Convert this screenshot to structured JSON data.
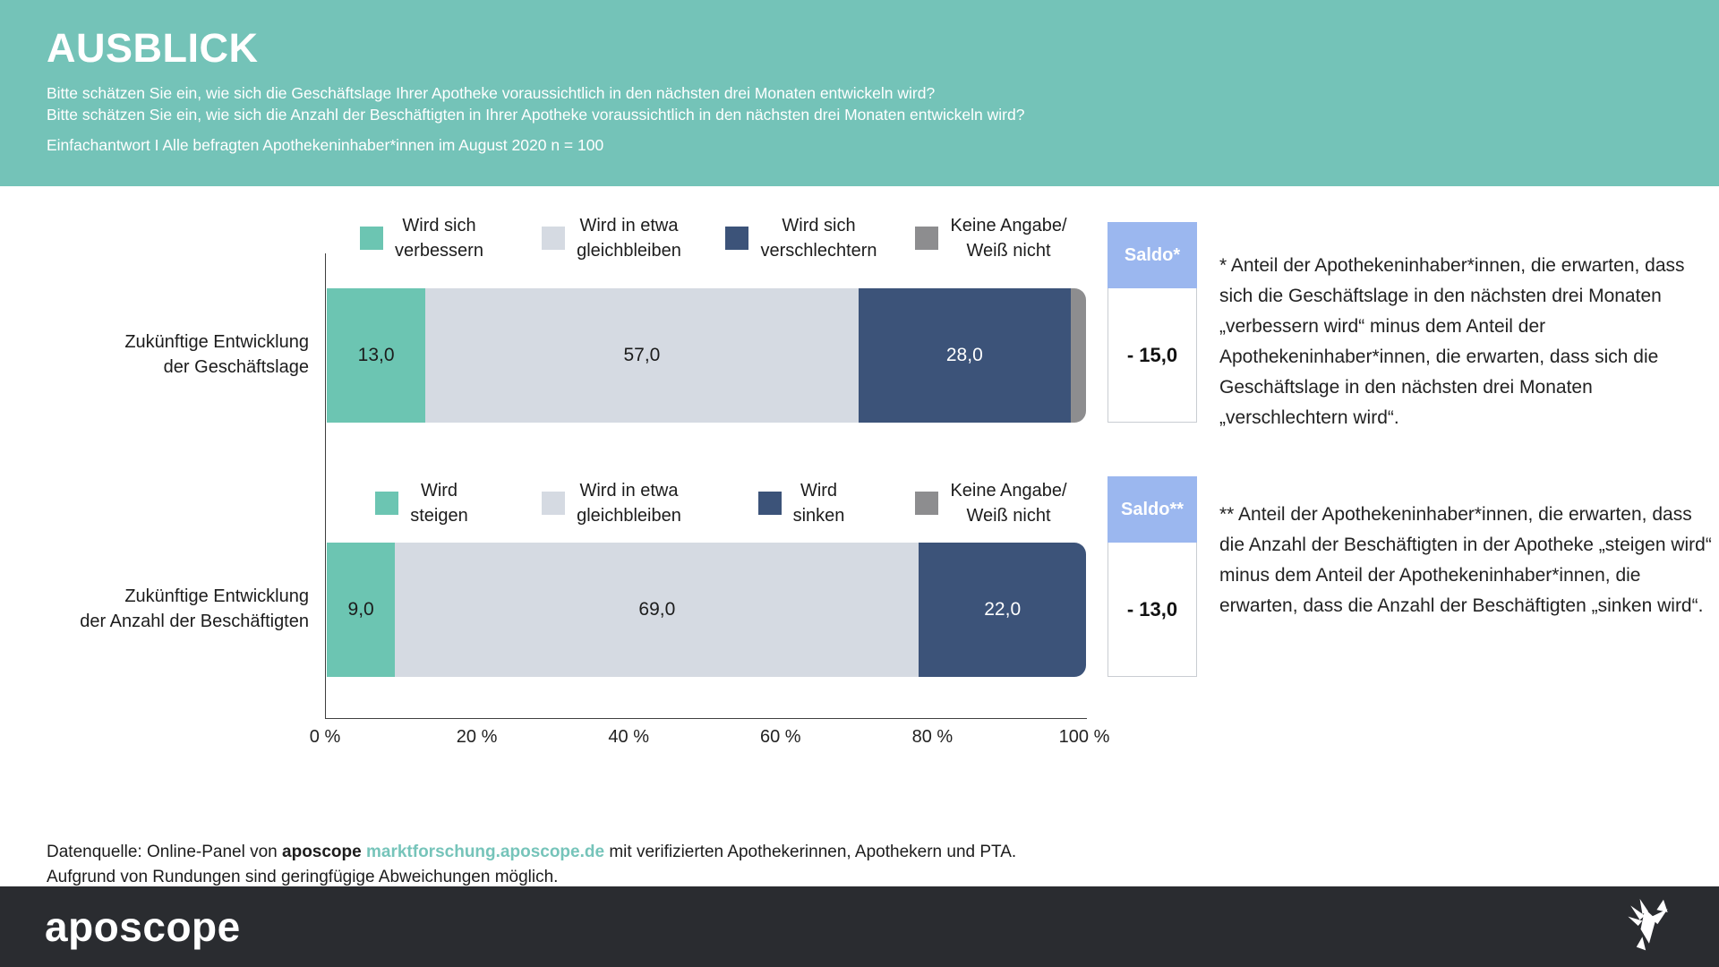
{
  "header": {
    "title": "AUSBLICK",
    "subtitle_lines": [
      "Bitte schätzen Sie ein, wie sich die Geschäftslage Ihrer Apotheke voraussichtlich in den nächsten drei Monaten entwickeln wird?",
      "Bitte schätzen Sie ein, wie sich die Anzahl der Beschäftigten in Ihrer Apotheke voraussichtlich in den nächsten drei Monaten entwickeln wird?"
    ],
    "meta": "Einfachantwort I Alle befragten Apothekeninhaber*innen im August 2020 n = 100"
  },
  "colors": {
    "header_bg": "#74c3b8",
    "positive": "#6cc5b2",
    "neutral": "#d5dae2",
    "negative": "#3c5379",
    "no_answer": "#8d8d8f",
    "saldo_header": "#9bb7ef",
    "link": "#76c4ba",
    "footer_bg": "#2a2c30"
  },
  "chart_data": {
    "type": "bar",
    "orientation": "horizontal",
    "stacked": true,
    "x_axis": {
      "min": 0,
      "max": 100,
      "ticks": [
        "0 %",
        "20 %",
        "40 %",
        "60 %",
        "80 %",
        "100 %"
      ]
    },
    "rows": [
      {
        "label_lines": [
          "Zukünftige Entwicklung",
          "der Geschäftslage"
        ],
        "legend": [
          {
            "lines": [
              "Wird sich",
              "verbessern"
            ],
            "color": "#6cc5b2"
          },
          {
            "lines": [
              "Wird in etwa",
              "gleichbleiben"
            ],
            "color": "#d5dae2"
          },
          {
            "lines": [
              "Wird sich",
              "verschlechtern"
            ],
            "color": "#3c5379"
          },
          {
            "lines": [
              "Keine Angabe/",
              "Weiß nicht"
            ],
            "color": "#8d8d8f"
          }
        ],
        "segments": [
          {
            "name": "Wird sich verbessern",
            "value": 13.0,
            "display": "13,0",
            "color": "#6cc5b2",
            "text": "#1c1c1c"
          },
          {
            "name": "Wird in etwa gleichbleiben",
            "value": 57.0,
            "display": "57,0",
            "color": "#d5dae2",
            "text": "#1c1c1c"
          },
          {
            "name": "Wird sich verschlechtern",
            "value": 28.0,
            "display": "28,0",
            "color": "#3c5379",
            "text": "#ffffff"
          },
          {
            "name": "Keine Angabe/Weiß nicht",
            "value": 2.0,
            "display": "",
            "color": "#8d8d8f",
            "text": "#ffffff"
          }
        ],
        "saldo": {
          "label": "Saldo*",
          "value": "- 15,0"
        },
        "footnote": "* Anteil der Apothekeninhaber*innen, die erwarten, dass sich die Geschäftslage in den nächsten drei Monaten „verbessern wird“ minus dem Anteil der Apothekeninhaber*innen, die erwarten, dass sich die Geschäftslage in den nächsten drei Monaten „verschlechtern wird“."
      },
      {
        "label_lines": [
          "Zukünftige Entwicklung",
          "der Anzahl der Beschäftigten"
        ],
        "legend": [
          {
            "lines": [
              "Wird",
              "steigen"
            ],
            "color": "#6cc5b2"
          },
          {
            "lines": [
              "Wird in etwa",
              "gleichbleiben"
            ],
            "color": "#d5dae2"
          },
          {
            "lines": [
              "Wird",
              "sinken"
            ],
            "color": "#3c5379"
          },
          {
            "lines": [
              "Keine Angabe/",
              "Weiß nicht"
            ],
            "color": "#8d8d8f"
          }
        ],
        "segments": [
          {
            "name": "Wird steigen",
            "value": 9.0,
            "display": "9,0",
            "color": "#6cc5b2",
            "text": "#1c1c1c"
          },
          {
            "name": "Wird in etwa gleichbleiben",
            "value": 69.0,
            "display": "69,0",
            "color": "#d5dae2",
            "text": "#1c1c1c"
          },
          {
            "name": "Wird sinken",
            "value": 22.0,
            "display": "22,0",
            "color": "#3c5379",
            "text": "#ffffff"
          }
        ],
        "saldo": {
          "label": "Saldo**",
          "value": "- 13,0"
        },
        "footnote": "** Anteil der Apothekeninhaber*innen, die erwarten, dass die Anzahl der Beschäftigten in der Apotheke „steigen wird“ minus dem Anteil der Apothekeninhaber*innen, die erwarten, dass die Anzahl der Beschäftigten „sinken wird“."
      }
    ]
  },
  "source": {
    "line1_prefix": "Datenquelle: Online-Panel von ",
    "brand": "aposcope",
    "link": "marktforschung.aposcope.de",
    "line1_suffix": " mit verifizierten Apothekerinnen, Apothekern und PTA.",
    "line2": "Aufgrund von Rundungen sind geringfügige Abweichungen möglich."
  },
  "footer": {
    "brand": "aposcope",
    "icon": "origami-bird-icon"
  }
}
